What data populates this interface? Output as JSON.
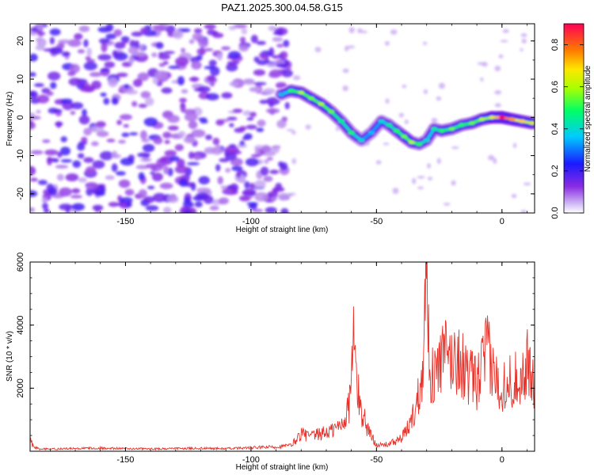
{
  "title": "PAZ1.2025.300.04.58.G15",
  "colors": {
    "ridge": "#00ff66",
    "noise": "#8a2be2",
    "snr_line": "#e8332b"
  },
  "chart_data": [
    {
      "type": "heatmap",
      "xlabel": "Height of straight line (km)",
      "ylabel": "Frequency (Hz)",
      "xlim": [
        -188,
        13
      ],
      "ylim": [
        -25,
        24.5
      ],
      "xticks": [
        -150,
        -100,
        -50,
        0
      ],
      "yticks": [
        -20,
        -10,
        0,
        10,
        20
      ],
      "colorbar": {
        "label": "Normalized spectral amplitude",
        "range": [
          0.0,
          0.9
        ],
        "ticks": [
          0.0,
          0.2,
          0.4,
          0.6,
          0.8
        ],
        "colormap": "rainbow (violet to red)"
      },
      "noise_region": {
        "x_range": [
          -188,
          -85
        ],
        "f_range": [
          -25,
          24.5
        ],
        "amplitude": [
          0.05,
          0.2
        ]
      },
      "ridge": {
        "x": [
          -88,
          -84,
          -80,
          -76,
          -72,
          -68,
          -64,
          -60,
          -56,
          -52,
          -48,
          -45,
          -42,
          -39,
          -36,
          -33,
          -30,
          -27,
          -24,
          -20,
          -16,
          -12,
          -8,
          -4,
          0,
          4,
          8,
          12
        ],
        "f": [
          6,
          7,
          6.5,
          5,
          3.5,
          1.5,
          -1,
          -4,
          -6,
          -4,
          -1,
          -2,
          -3.5,
          -5,
          -6.5,
          -7,
          -6,
          -3,
          -3.5,
          -3,
          -2,
          -1.5,
          -0.5,
          0,
          0,
          -0.5,
          -1,
          -1.5
        ],
        "amplitude": [
          0.3,
          0.45,
          0.55,
          0.5,
          0.55,
          0.5,
          0.4,
          0.45,
          0.35,
          0.3,
          0.35,
          0.4,
          0.45,
          0.5,
          0.55,
          0.45,
          0.35,
          0.4,
          0.45,
          0.5,
          0.45,
          0.5,
          0.55,
          0.6,
          0.85,
          0.7,
          0.65,
          0.6
        ]
      }
    },
    {
      "type": "line",
      "xlabel": "Height of straight line (km)",
      "ylabel": "SNR (10 * v/v)",
      "xlim": [
        -188,
        13
      ],
      "ylim": [
        0,
        6000
      ],
      "xticks": [
        -150,
        -100,
        -50,
        0
      ],
      "yticks": [
        2000,
        4000,
        6000
      ],
      "envelope": {
        "x": [
          -188,
          -186,
          -184,
          -180,
          -170,
          -160,
          -150,
          -140,
          -130,
          -120,
          -110,
          -100,
          -90,
          -84,
          -80,
          -76,
          -72,
          -68,
          -64,
          -61,
          -59,
          -58,
          -57,
          -56,
          -55,
          -54,
          -52,
          -50,
          -48,
          -45,
          -42,
          -40,
          -38,
          -36,
          -34,
          -32,
          -31,
          -30,
          -29.5,
          -29,
          -28,
          -26,
          -24,
          -22,
          -20,
          -18,
          -16,
          -14,
          -12,
          -10,
          -8,
          -6,
          -4,
          -2,
          0,
          2,
          4,
          6,
          8,
          10,
          12,
          13
        ],
        "y": [
          350,
          120,
          70,
          80,
          90,
          110,
          90,
          80,
          90,
          100,
          90,
          120,
          150,
          200,
          600,
          500,
          600,
          700,
          900,
          1500,
          3900,
          2500,
          1800,
          1300,
          1200,
          900,
          500,
          250,
          200,
          250,
          350,
          450,
          700,
          1100,
          1600,
          2600,
          4500,
          6000,
          5200,
          3200,
          2500,
          2700,
          3200,
          3300,
          3100,
          3200,
          3000,
          2600,
          2500,
          2300,
          2900,
          3500,
          2800,
          2400,
          2200,
          2500,
          2300,
          2600,
          2500,
          3000,
          2600,
          2300
        ]
      }
    }
  ]
}
